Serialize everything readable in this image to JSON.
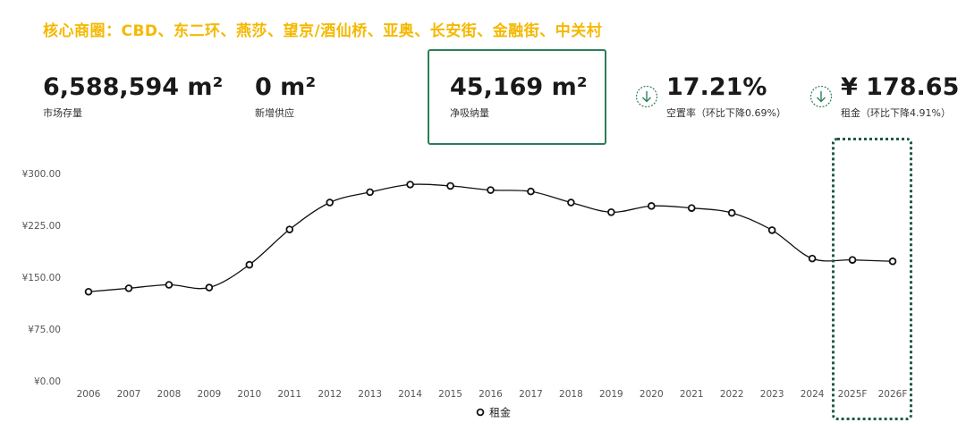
{
  "headline": "核心商圈：CBD、东二环、燕莎、望京/酒仙桥、亚奥、长安街、金融街、中关村",
  "kpis": [
    {
      "value": "6,588,594 m²",
      "label": "市场存量"
    },
    {
      "value": "0 m²",
      "label": "新增供应"
    },
    {
      "value": "45,169 m²",
      "label": "净吸纳量"
    },
    {
      "value": "17.21%",
      "label": "空置率（环比下降0.69%）",
      "icon": "arrow-down-circle-icon"
    },
    {
      "value": "¥ 178.65",
      "label": "租金（环比下降4.91%）",
      "icon": "arrow-down-circle-icon"
    }
  ],
  "colors": {
    "headline": "#f5b800",
    "box_border": "#2e7d5b",
    "dotted_box": "#1f5a44",
    "line": "#111111",
    "grid": "#e6e6e6"
  },
  "chart_data": {
    "type": "line",
    "categories": [
      "2006",
      "2007",
      "2008",
      "2009",
      "2010",
      "2011",
      "2012",
      "2013",
      "2014",
      "2015",
      "2016",
      "2017",
      "2018",
      "2019",
      "2020",
      "2021",
      "2022",
      "2023",
      "2024",
      "2025F",
      "2026F"
    ],
    "series": [
      {
        "name": "租金",
        "values": [
          129,
          134,
          139,
          135,
          168,
          219,
          258,
          273,
          284,
          282,
          276,
          274,
          258,
          244,
          253,
          250,
          243,
          218,
          177,
          175,
          173
        ]
      }
    ],
    "y_ticks": [
      "¥0.00",
      "¥75.00",
      "¥150.00",
      "¥225.00",
      "¥300.00"
    ],
    "ylim": [
      0,
      300
    ],
    "legend_position": "bottom-center",
    "grid": false,
    "highlight_categories": [
      "2025F",
      "2026F"
    ]
  }
}
